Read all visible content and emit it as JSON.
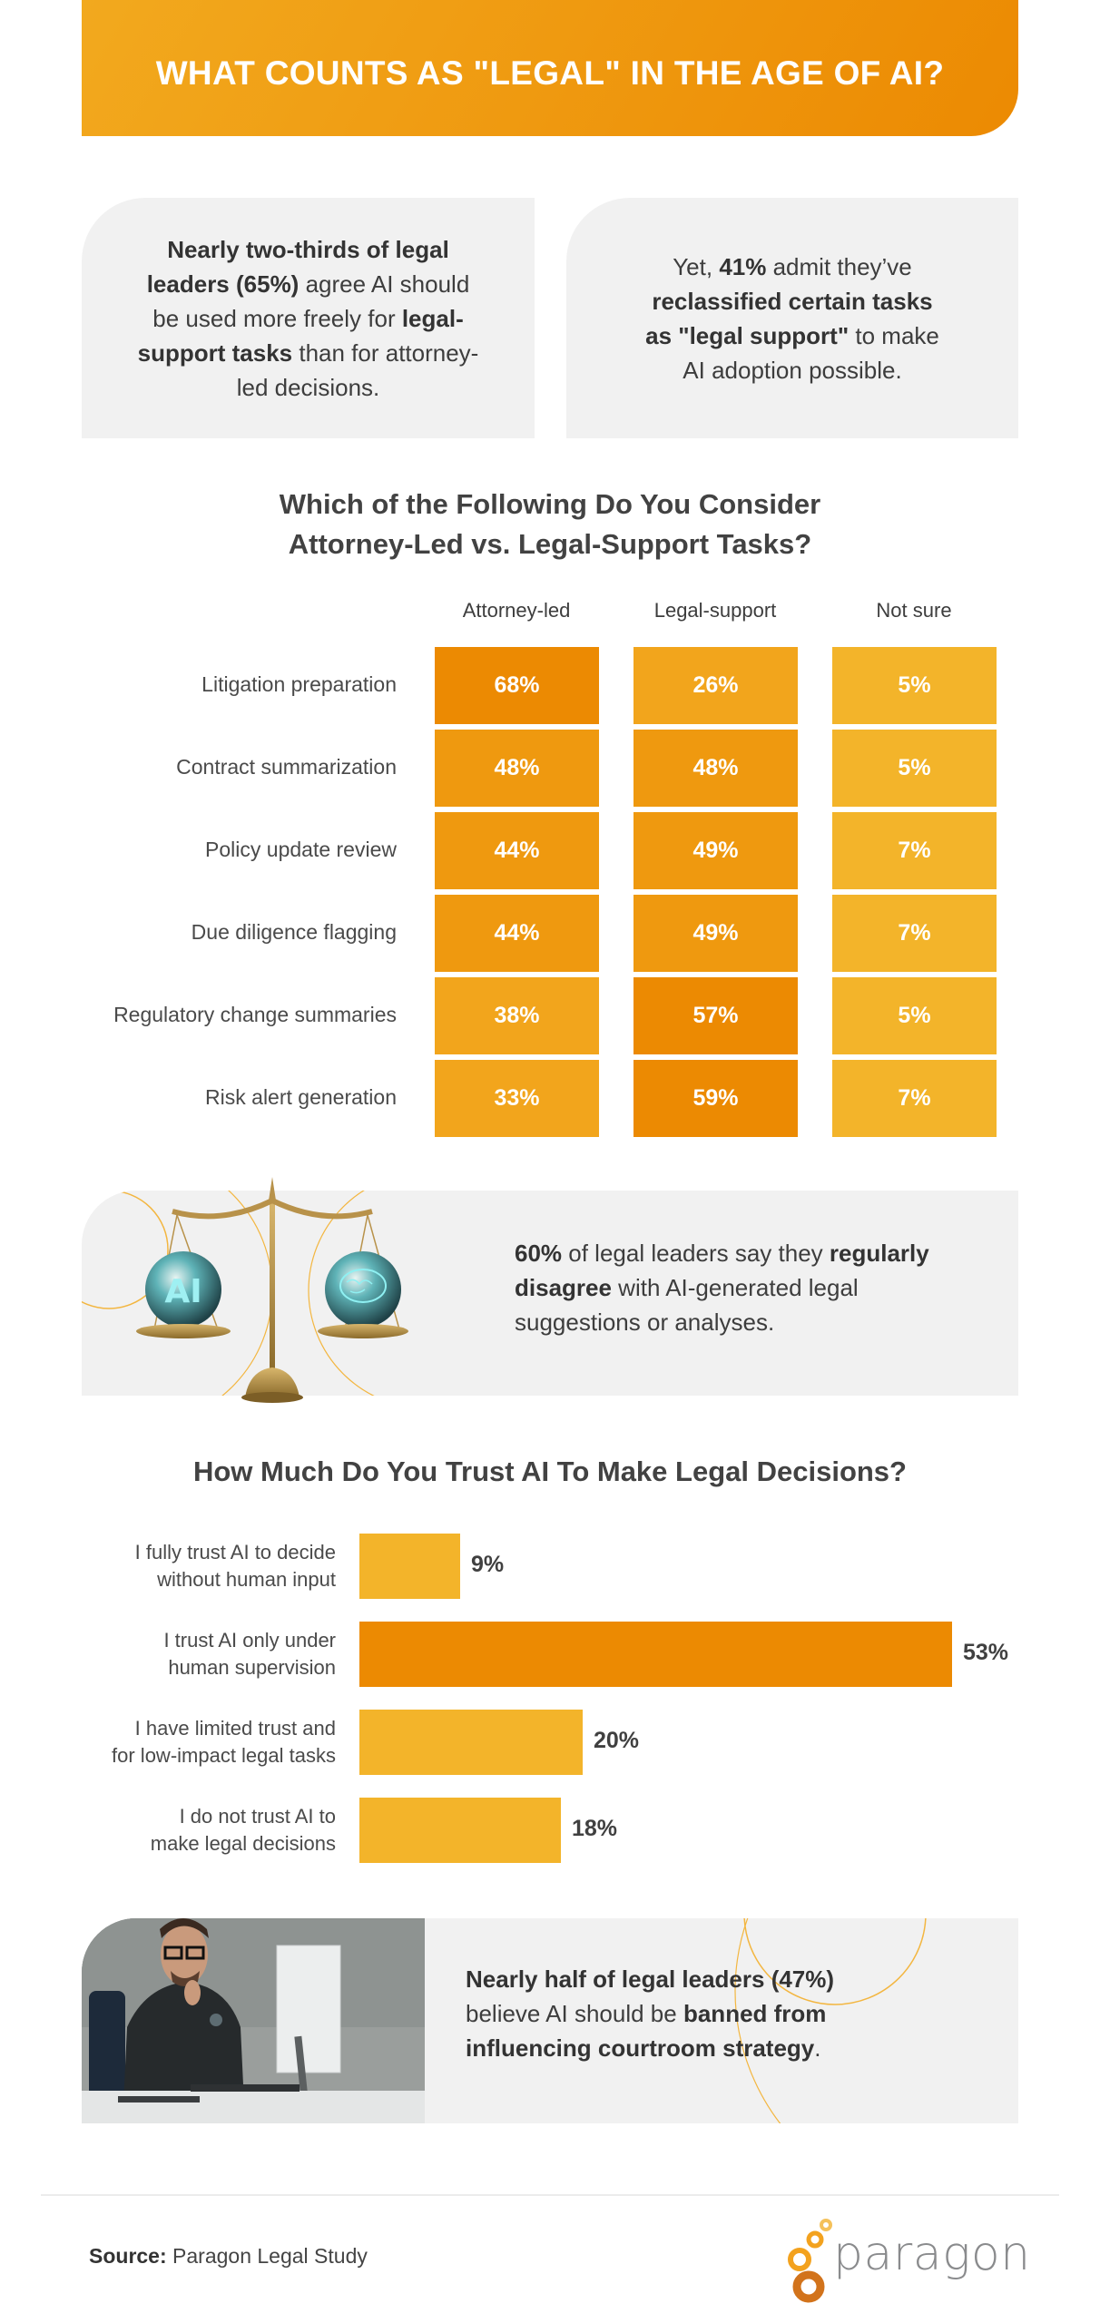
{
  "header": {
    "title": "WHAT COUNTS AS \"LEGAL\" IN THE AGE OF AI?"
  },
  "stat_cards": [
    {
      "segments": [
        {
          "text": "Nearly two-thirds of legal leaders (65%)",
          "bold": true
        },
        {
          "text": " agree AI should be used more freely for ",
          "bold": false
        },
        {
          "text": "legal-support tasks",
          "bold": true
        },
        {
          "text": " than for attorney-led decisions.",
          "bold": false
        }
      ]
    },
    {
      "segments": [
        {
          "text": "Yet, ",
          "bold": false
        },
        {
          "text": "41%",
          "bold": true
        },
        {
          "text": " admit they’ve ",
          "bold": false
        },
        {
          "text": "reclassified certain tasks as \"legal support\"",
          "bold": true
        },
        {
          "text": " to make AI adoption possible.",
          "bold": false
        }
      ]
    }
  ],
  "table_section": {
    "title_line1": "Which of the Following Do You Consider",
    "title_line2": "Attorney-Led vs. Legal-Support Tasks?",
    "columns": [
      "Attorney-led",
      "Legal-support",
      "Not sure"
    ]
  },
  "scale_card": {
    "bold1": "60%",
    "text1": " of legal leaders say they ",
    "bold2": "regularly disagree",
    "text2": " with AI-generated legal suggestions or analyses.",
    "image_alt": "Balance scale with AI sphere and brain sphere"
  },
  "trust_section": {
    "title": "How Much Do You Trust AI To Make Legal Decisions?"
  },
  "person_card": {
    "bold1": "Nearly half of legal leaders (47%)",
    "text1": " believe AI should be ",
    "bold2": "banned from influencing courtroom strategy",
    "text2": ".",
    "image_alt": "Man with glasses thinking at computer desk"
  },
  "footer": {
    "source_label": "Source:",
    "source_value": " Paragon Legal Study",
    "logo_text": "paragon"
  },
  "colors": {
    "orange_dark": "#ec8a02",
    "orange_mid": "#ef990f",
    "orange_light": "#f2a51c",
    "yellow": "#f3b42a",
    "card_gray": "#f1f1f1",
    "text_dark": "#404040"
  },
  "chart_data": [
    {
      "type": "heatmap",
      "title": "Which of the Following Do You Consider Attorney-Led vs. Legal-Support Tasks?",
      "categories": [
        "Litigation preparation",
        "Contract summarization",
        "Policy update review",
        "Due diligence flagging",
        "Regulatory change summaries",
        "Risk alert generation"
      ],
      "series": [
        {
          "name": "Attorney-led",
          "values": [
            68,
            48,
            44,
            44,
            38,
            33
          ]
        },
        {
          "name": "Legal-support",
          "values": [
            26,
            48,
            49,
            49,
            57,
            59
          ]
        },
        {
          "name": "Not sure",
          "values": [
            5,
            5,
            7,
            7,
            5,
            7
          ]
        }
      ],
      "value_suffix": "%"
    },
    {
      "type": "bar",
      "orientation": "horizontal",
      "title": "How Much Do You Trust AI To Make Legal Decisions?",
      "categories": [
        "I fully trust AI to decide without human input",
        "I trust AI only under human supervision",
        "I have limited trust and for low-impact legal tasks",
        "I do not trust AI to make legal decisions"
      ],
      "category_lines": [
        [
          "I fully trust AI to decide",
          "without human input"
        ],
        [
          "I trust AI only under",
          "human supervision"
        ],
        [
          "I have limited trust and",
          "for low-impact legal tasks"
        ],
        [
          "I do not trust AI to",
          "make legal decisions"
        ]
      ],
      "values": [
        9,
        53,
        20,
        18
      ],
      "labels": [
        "9%",
        "53%",
        "20%",
        "18%"
      ],
      "highlight_index": 1,
      "xlabel": "",
      "ylabel": ""
    }
  ]
}
